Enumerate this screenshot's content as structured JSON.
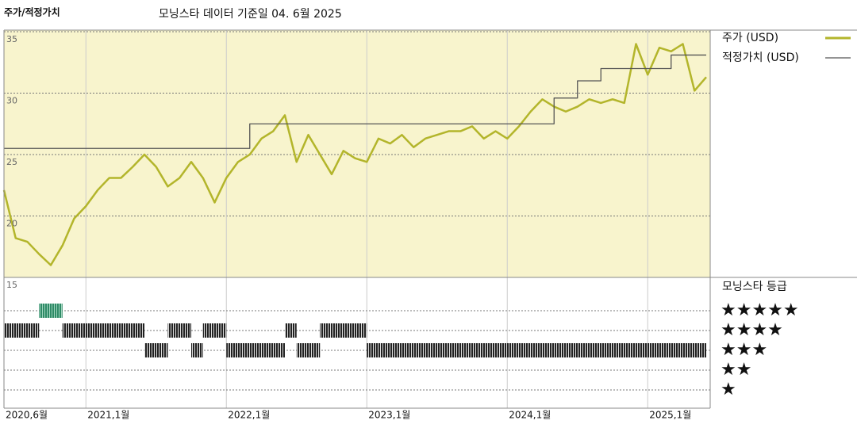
{
  "chart_data": {
    "type": "line",
    "title": "주가/적정가치",
    "subtitle": "모닝스타 데이터 기준일 04. 6월 2025",
    "ylim": [
      15,
      35
    ],
    "yticks": [
      15,
      20,
      25,
      30,
      35
    ],
    "grid": true,
    "xlim": [
      "2020-06",
      "2025-06"
    ],
    "xticks": [
      {
        "value": "2020-06",
        "label": "2020,6월"
      },
      {
        "value": "2021-01",
        "label": "2021,1월"
      },
      {
        "value": "2022-01",
        "label": "2022,1월"
      },
      {
        "value": "2023-01",
        "label": "2023,1월"
      },
      {
        "value": "2024-01",
        "label": "2024,1월"
      },
      {
        "value": "2025-01",
        "label": "2025,1월"
      }
    ],
    "series": [
      {
        "name": "주가 (USD)",
        "color": "#b3b52b",
        "step": false,
        "x": [
          "2020-06",
          "2020-07",
          "2020-08",
          "2020-09",
          "2020-10",
          "2020-11",
          "2020-12",
          "2021-01",
          "2021-02",
          "2021-03",
          "2021-04",
          "2021-05",
          "2021-06",
          "2021-07",
          "2021-08",
          "2021-09",
          "2021-10",
          "2021-11",
          "2021-12",
          "2022-01",
          "2022-02",
          "2022-03",
          "2022-04",
          "2022-05",
          "2022-06",
          "2022-07",
          "2022-08",
          "2022-09",
          "2022-10",
          "2022-11",
          "2022-12",
          "2023-01",
          "2023-02",
          "2023-03",
          "2023-04",
          "2023-05",
          "2023-06",
          "2023-07",
          "2023-08",
          "2023-09",
          "2023-10",
          "2023-11",
          "2023-12",
          "2024-01",
          "2024-02",
          "2024-03",
          "2024-04",
          "2024-05",
          "2024-06",
          "2024-07",
          "2024-08",
          "2024-09",
          "2024-10",
          "2024-11",
          "2024-12",
          "2025-01",
          "2025-02",
          "2025-03",
          "2025-04",
          "2025-05",
          "2025-06"
        ],
        "values": [
          22.1,
          18.2,
          17.9,
          16.9,
          16.0,
          17.6,
          19.8,
          20.8,
          22.1,
          23.1,
          23.1,
          24.0,
          25.0,
          24.0,
          22.4,
          23.1,
          24.4,
          23.1,
          21.1,
          23.1,
          24.4,
          25.0,
          26.3,
          26.9,
          28.2,
          24.4,
          26.6,
          25.0,
          23.4,
          25.3,
          24.7,
          24.4,
          26.3,
          25.9,
          26.6,
          25.6,
          26.3,
          26.6,
          26.9,
          26.9,
          27.3,
          26.3,
          26.9,
          26.3,
          27.3,
          28.5,
          29.5,
          28.9,
          28.5,
          28.9,
          29.5,
          29.2,
          29.5,
          29.2,
          34.0,
          31.5,
          33.7,
          33.4,
          34.0,
          30.2,
          31.3
        ]
      },
      {
        "name": "적정가치 (USD)",
        "color": "#555555",
        "step": true,
        "x": [
          "2020-06",
          "2022-03",
          "2024-05",
          "2024-07",
          "2024-09",
          "2025-03",
          "2025-06"
        ],
        "values": [
          25.5,
          27.5,
          29.6,
          31.0,
          32.0,
          33.1,
          33.1
        ]
      }
    ],
    "ratings": {
      "title": "모닝스타 등급",
      "star_labels": [
        {
          "value": 5,
          "label": "★★★★★"
        },
        {
          "value": 4,
          "label": "★★★★"
        },
        {
          "value": 3,
          "label": "★★★"
        },
        {
          "value": 2,
          "label": "★★"
        },
        {
          "value": 1,
          "label": "★"
        }
      ],
      "periods": [
        {
          "stars": 4,
          "from": "2020-06",
          "to": "2020-09"
        },
        {
          "stars": 5,
          "from": "2020-09",
          "to": "2020-11"
        },
        {
          "stars": 4,
          "from": "2020-11",
          "to": "2021-06"
        },
        {
          "stars": 3,
          "from": "2021-06",
          "to": "2021-08"
        },
        {
          "stars": 4,
          "from": "2021-08",
          "to": "2021-10"
        },
        {
          "stars": 3,
          "from": "2021-10",
          "to": "2021-11"
        },
        {
          "stars": 4,
          "from": "2021-11",
          "to": "2022-01"
        },
        {
          "stars": 3,
          "from": "2022-01",
          "to": "2022-06"
        },
        {
          "stars": 4,
          "from": "2022-06",
          "to": "2022-07"
        },
        {
          "stars": 3,
          "from": "2022-07",
          "to": "2022-09"
        },
        {
          "stars": 4,
          "from": "2022-09",
          "to": "2023-01"
        },
        {
          "stars": 3,
          "from": "2023-01",
          "to": "2025-06"
        }
      ]
    }
  }
}
